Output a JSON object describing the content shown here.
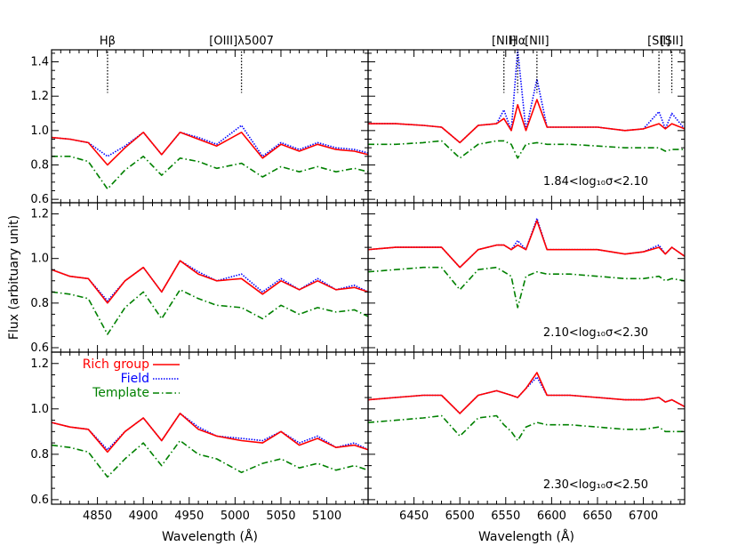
{
  "figure": {
    "ylabel": "Flux (arbituary unit)",
    "left_xlabel": "Wavelength (Å)",
    "right_xlabel": "Wavelength (Å)",
    "legend": [
      {
        "label": "Rich group",
        "color": "#ff0000",
        "style": "solid"
      },
      {
        "label": "Field",
        "color": "#0000ff",
        "style": "dotted"
      },
      {
        "label": "Template",
        "color": "#008000",
        "style": "dashdot"
      }
    ],
    "legend_placement": "top-left of bottom-left panel",
    "line_markers": [
      {
        "label": "Hβ",
        "x": 4861,
        "panel": "left"
      },
      {
        "label": "[OIII]λ5007",
        "x": 5007,
        "panel": "left"
      },
      {
        "label": "[NII]",
        "x": 6548,
        "panel": "right"
      },
      {
        "label": "Hα",
        "x": 6563,
        "panel": "right"
      },
      {
        "label": "[NII]",
        "x": 6584,
        "panel": "right"
      },
      {
        "label": "[SII]",
        "x": 6717,
        "panel": "right"
      },
      {
        "label": "[SII]",
        "x": 6731,
        "panel": "right"
      }
    ],
    "sigma_labels": [
      "1.84<log₁₀σ<2.10",
      "2.10<log₁₀σ<2.30",
      "2.30<log₁₀σ<2.50"
    ]
  },
  "chart_data": [
    {
      "type": "line",
      "panel": "row1-left",
      "xlim": [
        4800,
        5145
      ],
      "ylim": [
        0.58,
        1.47
      ],
      "xticks": [
        "4850",
        "4900",
        "4950",
        "5000",
        "5050",
        "5100"
      ],
      "yticks": [
        "0.6",
        "0.8",
        "1.0",
        "1.2",
        "1.4"
      ],
      "x": [
        4800,
        4820,
        4840,
        4861,
        4880,
        4900,
        4920,
        4940,
        4960,
        4980,
        5007,
        5030,
        5050,
        5070,
        5090,
        5110,
        5130,
        5145
      ],
      "series": [
        {
          "name": "Rich group",
          "values": [
            0.96,
            0.95,
            0.93,
            0.8,
            0.9,
            0.99,
            0.86,
            0.99,
            0.95,
            0.91,
            0.99,
            0.84,
            0.92,
            0.88,
            0.92,
            0.89,
            0.88,
            0.86
          ]
        },
        {
          "name": "Field",
          "values": [
            0.96,
            0.95,
            0.93,
            0.85,
            0.91,
            0.99,
            0.86,
            0.99,
            0.96,
            0.92,
            1.03,
            0.85,
            0.93,
            0.89,
            0.93,
            0.9,
            0.89,
            0.87
          ]
        },
        {
          "name": "Template",
          "values": [
            0.85,
            0.85,
            0.82,
            0.66,
            0.77,
            0.85,
            0.74,
            0.84,
            0.82,
            0.78,
            0.81,
            0.73,
            0.79,
            0.76,
            0.79,
            0.76,
            0.78,
            0.76
          ]
        }
      ]
    },
    {
      "type": "line",
      "panel": "row1-right",
      "xlim": [
        6400,
        6745
      ],
      "ylim": [
        0.58,
        1.47
      ],
      "xticks": [
        "6450",
        "6500",
        "6550",
        "6600",
        "6650",
        "6700"
      ],
      "yticks": [
        "0.6",
        "0.8",
        "1.0",
        "1.2",
        "1.4"
      ],
      "x": [
        6400,
        6430,
        6460,
        6480,
        6500,
        6520,
        6540,
        6548,
        6556,
        6563,
        6572,
        6584,
        6595,
        6620,
        6650,
        6680,
        6700,
        6717,
        6724,
        6731,
        6745
      ],
      "series": [
        {
          "name": "Rich group",
          "values": [
            1.04,
            1.04,
            1.03,
            1.02,
            0.93,
            1.03,
            1.04,
            1.07,
            1.0,
            1.15,
            1.0,
            1.18,
            1.02,
            1.02,
            1.02,
            1.0,
            1.01,
            1.04,
            1.01,
            1.04,
            1.01
          ]
        },
        {
          "name": "Field",
          "values": [
            1.04,
            1.04,
            1.03,
            1.02,
            0.93,
            1.03,
            1.04,
            1.12,
            1.0,
            1.47,
            1.0,
            1.3,
            1.02,
            1.02,
            1.02,
            1.0,
            1.01,
            1.11,
            1.01,
            1.1,
            1.01
          ]
        },
        {
          "name": "Template",
          "values": [
            0.92,
            0.92,
            0.93,
            0.94,
            0.84,
            0.92,
            0.94,
            0.94,
            0.92,
            0.84,
            0.92,
            0.93,
            0.92,
            0.92,
            0.91,
            0.9,
            0.9,
            0.9,
            0.88,
            0.89,
            0.89
          ]
        }
      ]
    },
    {
      "type": "line",
      "panel": "row2-left",
      "xlim": [
        4800,
        5145
      ],
      "ylim": [
        0.58,
        1.25
      ],
      "xticks": [
        "4850",
        "4900",
        "4950",
        "5000",
        "5050",
        "5100"
      ],
      "yticks": [
        "0.6",
        "0.8",
        "1.0",
        "1.2"
      ],
      "x": [
        4800,
        4820,
        4840,
        4861,
        4880,
        4900,
        4920,
        4940,
        4960,
        4980,
        5007,
        5030,
        5050,
        5070,
        5090,
        5110,
        5130,
        5145
      ],
      "series": [
        {
          "name": "Rich group",
          "values": [
            0.95,
            0.92,
            0.91,
            0.8,
            0.9,
            0.96,
            0.85,
            0.99,
            0.93,
            0.9,
            0.91,
            0.84,
            0.9,
            0.86,
            0.9,
            0.86,
            0.87,
            0.85
          ]
        },
        {
          "name": "Field",
          "values": [
            0.95,
            0.92,
            0.91,
            0.81,
            0.9,
            0.96,
            0.85,
            0.99,
            0.94,
            0.9,
            0.93,
            0.85,
            0.91,
            0.86,
            0.91,
            0.86,
            0.88,
            0.85
          ]
        },
        {
          "name": "Template",
          "values": [
            0.85,
            0.84,
            0.82,
            0.66,
            0.78,
            0.85,
            0.73,
            0.86,
            0.82,
            0.79,
            0.78,
            0.73,
            0.79,
            0.75,
            0.78,
            0.76,
            0.77,
            0.74
          ]
        }
      ]
    },
    {
      "type": "line",
      "panel": "row2-right",
      "xlim": [
        6400,
        6745
      ],
      "ylim": [
        0.58,
        1.25
      ],
      "xticks": [
        "6450",
        "6500",
        "6550",
        "6600",
        "6650",
        "6700"
      ],
      "yticks": [
        "0.6",
        "0.8",
        "1.0",
        "1.2"
      ],
      "x": [
        6400,
        6430,
        6460,
        6480,
        6500,
        6520,
        6540,
        6548,
        6556,
        6563,
        6572,
        6584,
        6595,
        6620,
        6650,
        6680,
        6700,
        6717,
        6724,
        6731,
        6745
      ],
      "series": [
        {
          "name": "Rich group",
          "values": [
            1.04,
            1.05,
            1.05,
            1.05,
            0.96,
            1.04,
            1.06,
            1.06,
            1.04,
            1.06,
            1.04,
            1.17,
            1.04,
            1.04,
            1.04,
            1.02,
            1.03,
            1.05,
            1.02,
            1.05,
            1.01
          ]
        },
        {
          "name": "Field",
          "values": [
            1.04,
            1.05,
            1.05,
            1.05,
            0.96,
            1.04,
            1.06,
            1.06,
            1.04,
            1.08,
            1.04,
            1.18,
            1.04,
            1.04,
            1.04,
            1.02,
            1.03,
            1.06,
            1.02,
            1.05,
            1.01
          ]
        },
        {
          "name": "Template",
          "values": [
            0.94,
            0.95,
            0.96,
            0.96,
            0.86,
            0.95,
            0.96,
            0.94,
            0.92,
            0.78,
            0.92,
            0.94,
            0.93,
            0.93,
            0.92,
            0.91,
            0.91,
            0.92,
            0.9,
            0.91,
            0.9
          ]
        }
      ]
    },
    {
      "type": "line",
      "panel": "row3-left",
      "xlim": [
        4800,
        5145
      ],
      "ylim": [
        0.58,
        1.25
      ],
      "xticks": [
        "4850",
        "4900",
        "4950",
        "5000",
        "5050",
        "5100"
      ],
      "yticks": [
        "0.6",
        "0.8",
        "1.0",
        "1.2"
      ],
      "x": [
        4800,
        4820,
        4840,
        4861,
        4880,
        4900,
        4920,
        4940,
        4960,
        4980,
        5007,
        5030,
        5050,
        5070,
        5090,
        5110,
        5130,
        5145
      ],
      "series": [
        {
          "name": "Rich group",
          "values": [
            0.94,
            0.92,
            0.91,
            0.81,
            0.9,
            0.96,
            0.86,
            0.98,
            0.91,
            0.88,
            0.86,
            0.85,
            0.9,
            0.84,
            0.87,
            0.83,
            0.84,
            0.82
          ]
        },
        {
          "name": "Field",
          "values": [
            0.94,
            0.92,
            0.91,
            0.82,
            0.9,
            0.96,
            0.86,
            0.98,
            0.92,
            0.88,
            0.87,
            0.86,
            0.9,
            0.85,
            0.88,
            0.83,
            0.85,
            0.82
          ]
        },
        {
          "name": "Template",
          "values": [
            0.84,
            0.83,
            0.81,
            0.7,
            0.78,
            0.85,
            0.75,
            0.86,
            0.8,
            0.78,
            0.72,
            0.76,
            0.78,
            0.74,
            0.76,
            0.73,
            0.75,
            0.73
          ]
        }
      ]
    },
    {
      "type": "line",
      "panel": "row3-right",
      "xlim": [
        6400,
        6745
      ],
      "ylim": [
        0.58,
        1.25
      ],
      "xticks": [
        "6450",
        "6500",
        "6550",
        "6600",
        "6650",
        "6700"
      ],
      "yticks": [
        "0.6",
        "0.8",
        "1.0",
        "1.2"
      ],
      "x": [
        6400,
        6430,
        6460,
        6480,
        6500,
        6520,
        6540,
        6548,
        6556,
        6563,
        6572,
        6584,
        6595,
        6620,
        6650,
        6680,
        6700,
        6717,
        6724,
        6731,
        6745
      ],
      "series": [
        {
          "name": "Rich group",
          "values": [
            1.04,
            1.05,
            1.06,
            1.06,
            0.98,
            1.06,
            1.08,
            1.07,
            1.06,
            1.05,
            1.09,
            1.16,
            1.06,
            1.06,
            1.05,
            1.04,
            1.04,
            1.05,
            1.03,
            1.04,
            1.01
          ]
        },
        {
          "name": "Field",
          "values": [
            1.04,
            1.05,
            1.06,
            1.06,
            0.98,
            1.06,
            1.08,
            1.07,
            1.06,
            1.05,
            1.09,
            1.14,
            1.06,
            1.06,
            1.05,
            1.04,
            1.04,
            1.05,
            1.03,
            1.04,
            1.01
          ]
        },
        {
          "name": "Template",
          "values": [
            0.94,
            0.95,
            0.96,
            0.97,
            0.88,
            0.96,
            0.97,
            0.93,
            0.9,
            0.86,
            0.92,
            0.94,
            0.93,
            0.93,
            0.92,
            0.91,
            0.91,
            0.92,
            0.9,
            0.9,
            0.9
          ]
        }
      ]
    }
  ]
}
